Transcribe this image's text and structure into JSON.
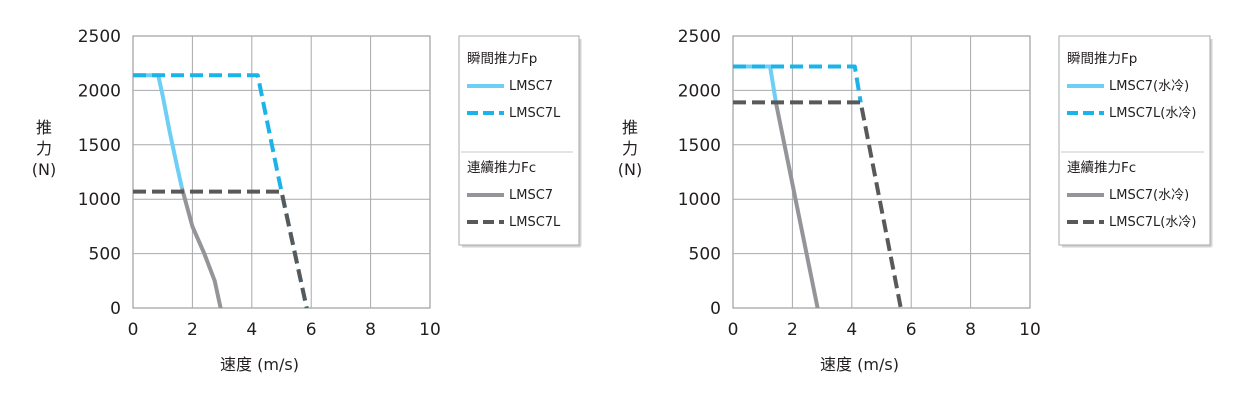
{
  "chart_data": [
    {
      "type": "line",
      "xlabel": "速度 (m/s)",
      "ylabel": [
        "推",
        "力",
        "(N)"
      ],
      "xlim": [
        0,
        10
      ],
      "ylim": [
        0,
        2500
      ],
      "xticks": [
        "0",
        "2",
        "4",
        "6",
        "8",
        "10"
      ],
      "yticks": [
        "0",
        "500",
        "1000",
        "1500",
        "2000",
        "2500"
      ],
      "grid": true,
      "legend_position": "right",
      "legend_groups": [
        {
          "heading": "瞬間推力Fp",
          "series": [
            {
              "name": "LMSC7",
              "style": "solid",
              "color": "#6dcff6",
              "points": [
                [
                  0,
                  2140
                ],
                [
                  0.85,
                  2140
                ],
                [
                  1.0,
                  1950
                ],
                [
                  1.25,
                  1600
                ],
                [
                  1.5,
                  1280
                ],
                [
                  1.65,
                  1100
                ]
              ]
            },
            {
              "name": "LMSC7L",
              "style": "dashed",
              "color": "#1cb4e8",
              "points": [
                [
                  0,
                  2140
                ],
                [
                  4.2,
                  2140
                ],
                [
                  4.9,
                  1200
                ],
                [
                  5.85,
                  0
                ]
              ]
            }
          ]
        },
        {
          "heading": "連續推力Fc",
          "series": [
            {
              "name": "LMSC7",
              "style": "solid",
              "color": "#939598",
              "points": [
                [
                  1.65,
                  1100
                ],
                [
                  2.0,
                  750
                ],
                [
                  2.4,
                  500
                ],
                [
                  2.75,
                  250
                ],
                [
                  2.95,
                  0
                ]
              ]
            },
            {
              "name": "LMSC7L",
              "style": "dashed",
              "color": "#58595b",
              "points": [
                [
                  0,
                  1070
                ],
                [
                  5.0,
                  1070
                ],
                [
                  5.85,
                  0
                ]
              ]
            }
          ]
        }
      ]
    },
    {
      "type": "line",
      "xlabel": "速度 (m/s)",
      "ylabel": [
        "推",
        "力",
        "(N)"
      ],
      "xlim": [
        0,
        10
      ],
      "ylim": [
        0,
        2500
      ],
      "xticks": [
        "0",
        "2",
        "4",
        "6",
        "8",
        "10"
      ],
      "yticks": [
        "0",
        "500",
        "1000",
        "1500",
        "2000",
        "2500"
      ],
      "grid": true,
      "legend_position": "right",
      "legend_groups": [
        {
          "heading": "瞬間推力Fp",
          "series": [
            {
              "name": "LMSC7(水冷)",
              "style": "solid",
              "color": "#6dcff6",
              "points": [
                [
                  0,
                  2220
                ],
                [
                  1.25,
                  2220
                ],
                [
                  1.45,
                  1880
                ]
              ]
            },
            {
              "name": "LMSC7L(水冷)",
              "style": "dashed",
              "color": "#1cb4e8",
              "points": [
                [
                  0,
                  2220
                ],
                [
                  4.1,
                  2220
                ],
                [
                  4.3,
                  1890
                ]
              ]
            }
          ]
        },
        {
          "heading": "連續推力Fc",
          "series": [
            {
              "name": "LMSC7(水冷)",
              "style": "solid",
              "color": "#939598",
              "points": [
                [
                  1.45,
                  1880
                ],
                [
                  2.85,
                  0
                ]
              ]
            },
            {
              "name": "LMSC7L(水冷)",
              "style": "dashed",
              "color": "#58595b",
              "points": [
                [
                  0,
                  1890
                ],
                [
                  4.3,
                  1890
                ],
                [
                  5.65,
                  0
                ]
              ]
            }
          ]
        }
      ]
    }
  ]
}
